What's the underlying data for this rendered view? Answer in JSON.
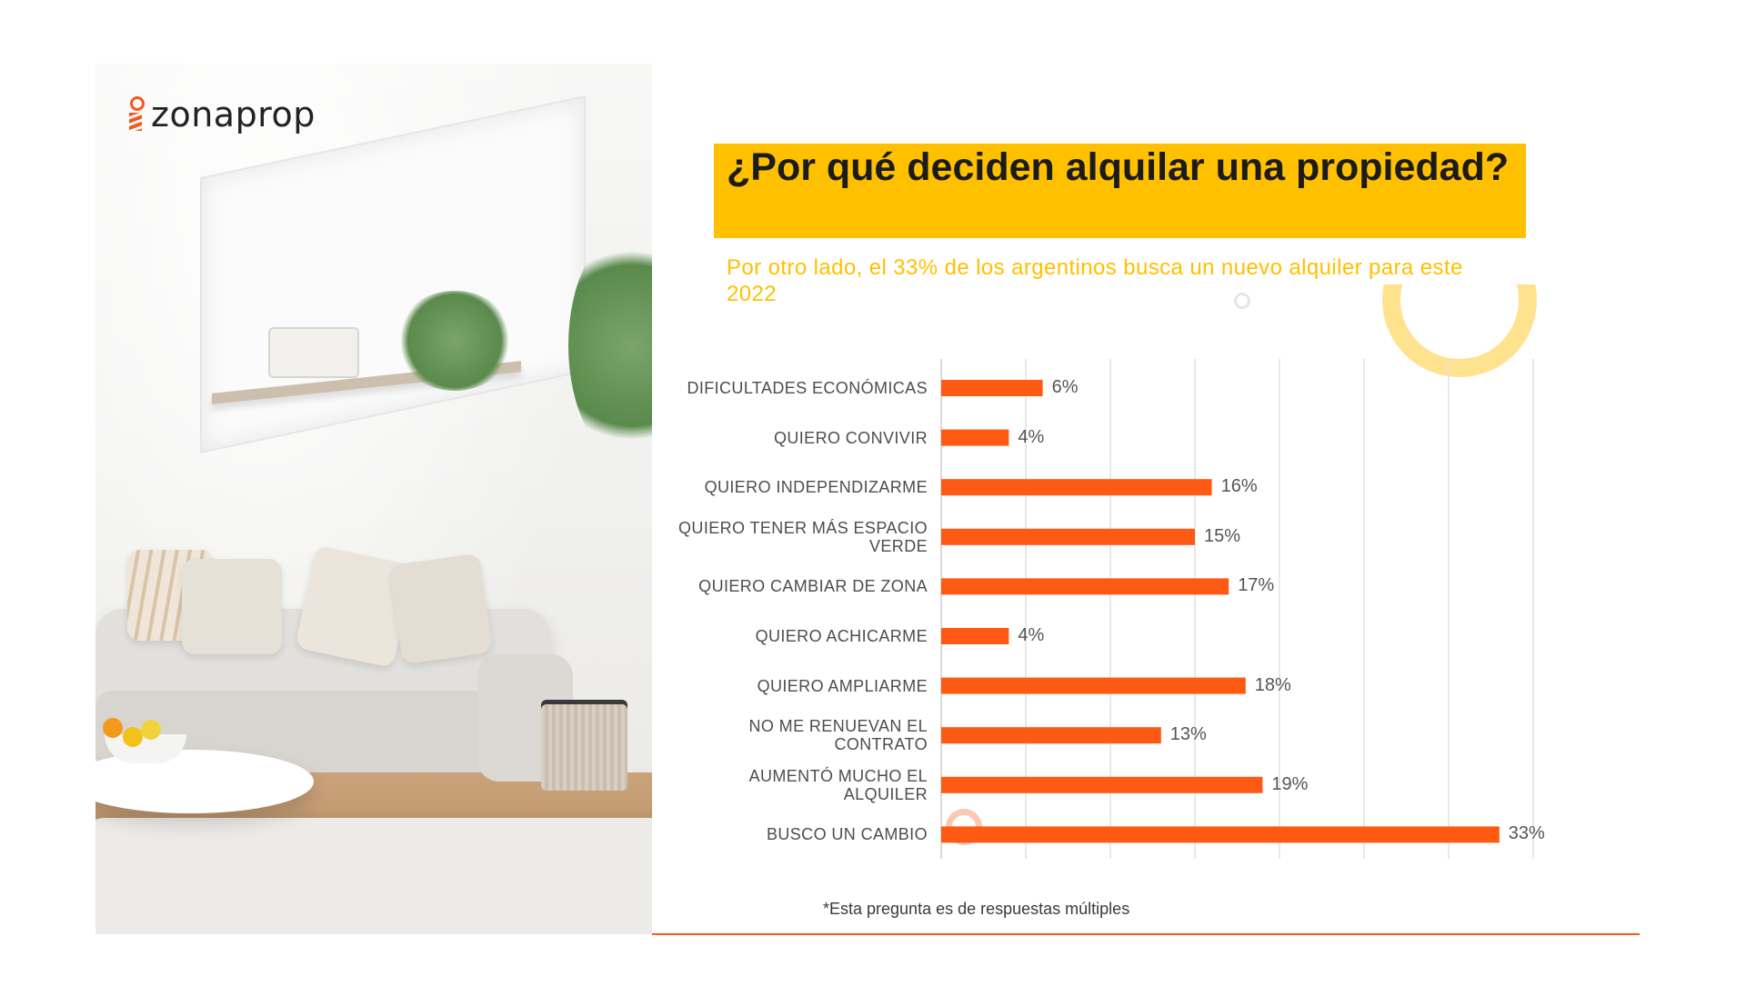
{
  "brand": {
    "name": "zonaprop",
    "accent": "#f25a1e",
    "title_bg": "#ffc000"
  },
  "header": {
    "title": "¿Por qué deciden alquilar una propiedad?",
    "subtitle": "Por otro lado, el 33% de los argentinos busca un nuevo alquiler para este 2022"
  },
  "chart_data": {
    "type": "bar",
    "orientation": "horizontal",
    "categories": [
      "DIFICULTADES ECONÓMICAS",
      "QUIERO CONVIVIR",
      "QUIERO INDEPENDIZARME",
      "QUIERO TENER MÁS ESPACIO VERDE",
      "QUIERO CAMBIAR DE ZONA",
      "QUIERO ACHICARME",
      "QUIERO AMPLIARME",
      "NO ME RENUEVAN EL CONTRATO",
      "AUMENTÓ MUCHO EL ALQUILER",
      "BUSCO UN CAMBIO"
    ],
    "values": [
      6,
      4,
      16,
      15,
      17,
      4,
      18,
      13,
      19,
      33
    ],
    "value_labels": [
      "6%",
      "4%",
      "16%",
      "15%",
      "17%",
      "4%",
      "18%",
      "13%",
      "19%",
      "33%"
    ],
    "xlim": [
      0,
      35
    ],
    "grid": true,
    "bar_color": "#ff5a14"
  },
  "footnote": "*Esta pregunta es de respuestas múltiples"
}
